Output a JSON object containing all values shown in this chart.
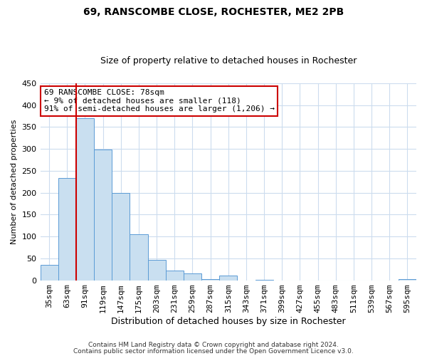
{
  "title": "69, RANSCOMBE CLOSE, ROCHESTER, ME2 2PB",
  "subtitle": "Size of property relative to detached houses in Rochester",
  "xlabel": "Distribution of detached houses by size in Rochester",
  "ylabel": "Number of detached properties",
  "categories": [
    "35sqm",
    "63sqm",
    "91sqm",
    "119sqm",
    "147sqm",
    "175sqm",
    "203sqm",
    "231sqm",
    "259sqm",
    "287sqm",
    "315sqm",
    "343sqm",
    "371sqm",
    "399sqm",
    "427sqm",
    "455sqm",
    "483sqm",
    "511sqm",
    "539sqm",
    "567sqm",
    "595sqm"
  ],
  "values": [
    35,
    234,
    370,
    298,
    199,
    105,
    47,
    22,
    15,
    3,
    10,
    0,
    1,
    0,
    0,
    0,
    0,
    0,
    0,
    0,
    2
  ],
  "bar_color": "#c9dff0",
  "bar_edge_color": "#5b9bd5",
  "reference_line_color": "#cc0000",
  "annotation_line1": "69 RANSCOMBE CLOSE: 78sqm",
  "annotation_line2": "← 9% of detached houses are smaller (118)",
  "annotation_line3": "91% of semi-detached houses are larger (1,206) →",
  "annotation_box_color": "#ffffff",
  "annotation_box_edge_color": "#cc0000",
  "ylim": [
    0,
    450
  ],
  "yticks": [
    0,
    50,
    100,
    150,
    200,
    250,
    300,
    350,
    400,
    450
  ],
  "footnote1": "Contains HM Land Registry data © Crown copyright and database right 2024.",
  "footnote2": "Contains public sector information licensed under the Open Government Licence v3.0.",
  "background_color": "#ffffff",
  "grid_color": "#ccdcee",
  "title_fontsize": 10,
  "subtitle_fontsize": 9,
  "xlabel_fontsize": 9,
  "ylabel_fontsize": 8,
  "tick_fontsize": 8,
  "annotation_fontsize": 8,
  "footnote_fontsize": 6.5
}
